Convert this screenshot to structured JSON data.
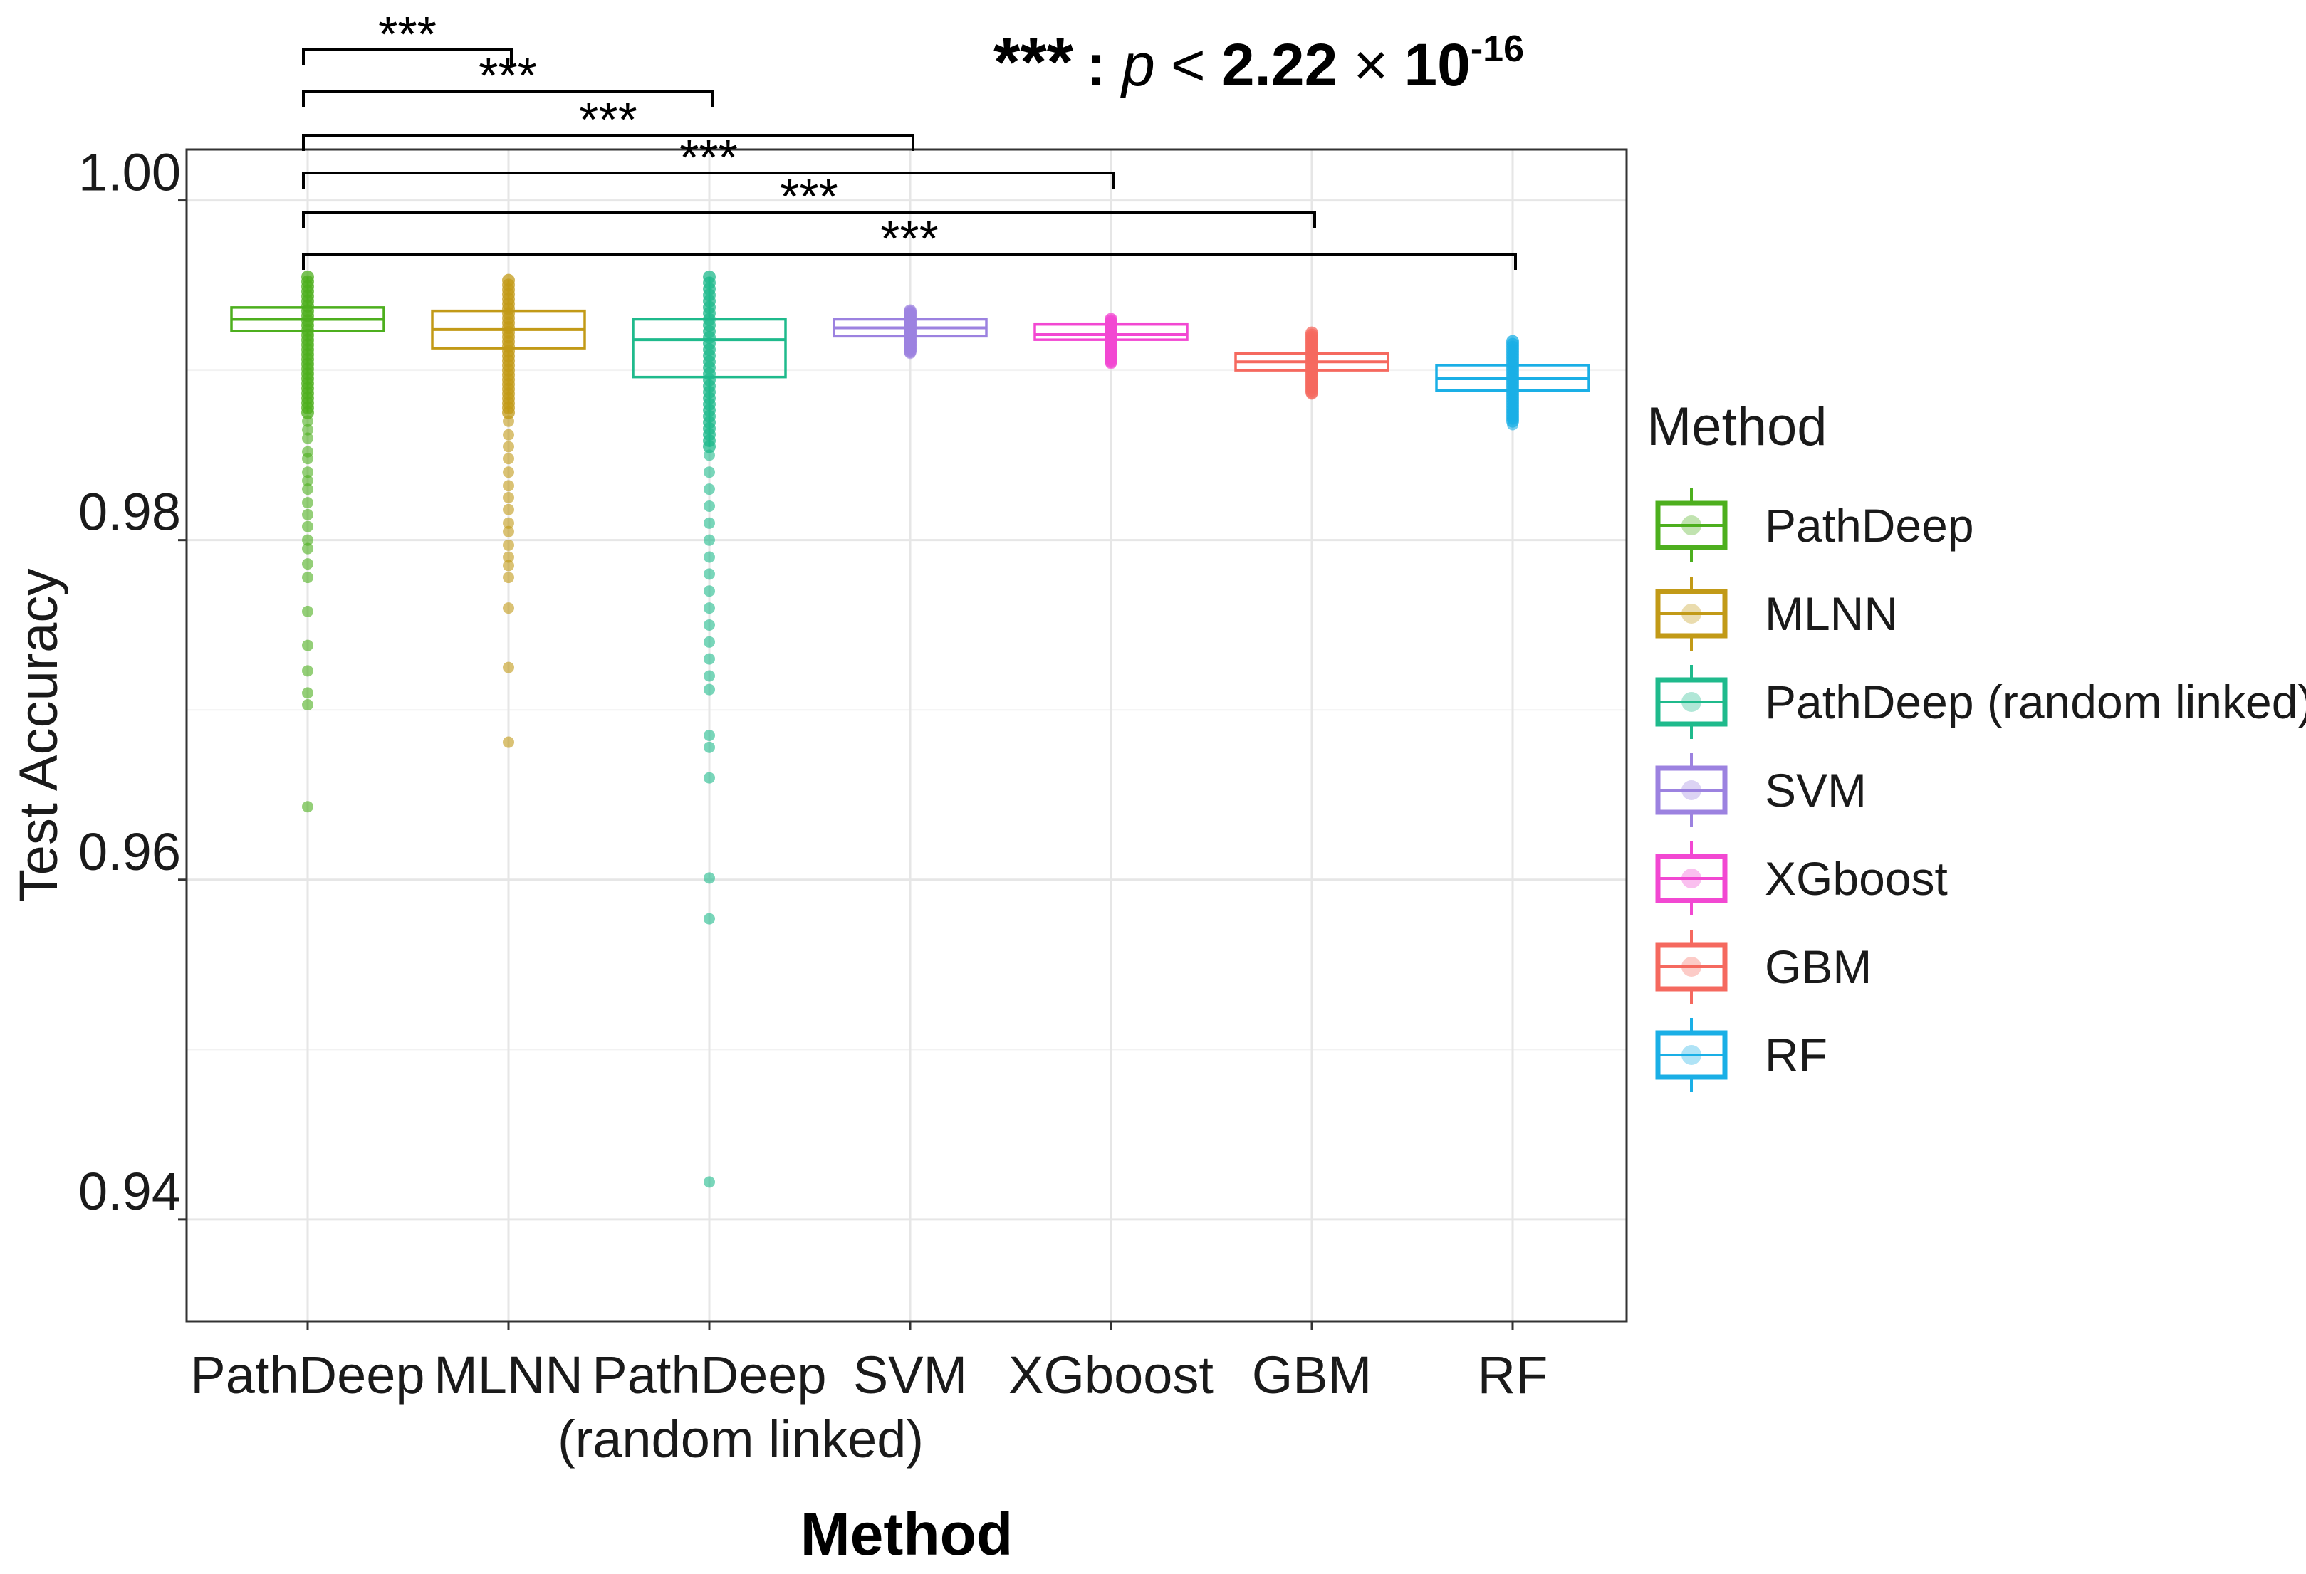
{
  "chart_data": {
    "type": "boxplot",
    "title": "",
    "xlabel": "Method",
    "ylabel": "Test Accuracy",
    "ylim": [
      0.934,
      1.003
    ],
    "yticks": [
      0.94,
      0.96,
      0.98,
      1.0
    ],
    "ytick_labels": [
      "0.94",
      "0.96",
      "0.98",
      "1.00"
    ],
    "grid": true,
    "legend": {
      "title": "Method",
      "position": "right",
      "entries": [
        "PathDeep",
        "MLNN",
        "PathDeep (random linked)",
        "SVM",
        "XGboost",
        "GBM",
        "RF"
      ]
    },
    "significance": {
      "symbol": "***",
      "annotation": {
        "stars": "***",
        "sep": ":",
        "p": "p",
        "lt": "<",
        "value": "2.22",
        "times": "×",
        "base": "10",
        "exponent": "-16"
      },
      "comparisons": [
        {
          "from": "PathDeep",
          "to": "MLNN",
          "label": "***"
        },
        {
          "from": "PathDeep",
          "to": "PathDeep (random linked)",
          "label": "***"
        },
        {
          "from": "PathDeep",
          "to": "SVM",
          "label": "***"
        },
        {
          "from": "PathDeep",
          "to": "XGboost",
          "label": "***"
        },
        {
          "from": "PathDeep",
          "to": "GBM",
          "label": "***"
        },
        {
          "from": "PathDeep",
          "to": "RF",
          "label": "***"
        }
      ]
    },
    "series": [
      {
        "name": "PathDeep",
        "tick_lines": [
          "PathDeep"
        ],
        "color": "#4DAF1E",
        "min": 0.9875,
        "q1": 0.9923,
        "median": 0.993,
        "q3": 0.9937,
        "max": 0.9955,
        "outliers": [
          0.987,
          0.9865,
          0.986,
          0.9852,
          0.9848,
          0.984,
          0.9835,
          0.983,
          0.9822,
          0.9815,
          0.9808,
          0.98,
          0.9795,
          0.9786,
          0.9778,
          0.9758,
          0.9738,
          0.9723,
          0.971,
          0.9703,
          0.9643
        ]
      },
      {
        "name": "MLNN",
        "tick_lines": [
          "MLNN"
        ],
        "color": "#C29A17",
        "min": 0.9875,
        "q1": 0.9913,
        "median": 0.9924,
        "q3": 0.9935,
        "max": 0.9953,
        "outliers": [
          0.987,
          0.9862,
          0.9855,
          0.9848,
          0.984,
          0.9832,
          0.9825,
          0.9818,
          0.981,
          0.9805,
          0.9797,
          0.979,
          0.9785,
          0.9778,
          0.976,
          0.9725,
          0.9681
        ]
      },
      {
        "name": "PathDeep (random linked)",
        "tick_lines": [
          "PathDeep",
          "(random linked)"
        ],
        "color": "#1FBA8C",
        "min": 0.9855,
        "q1": 0.9896,
        "median": 0.9918,
        "q3": 0.993,
        "max": 0.9955,
        "outliers": [
          0.985,
          0.984,
          0.983,
          0.982,
          0.981,
          0.98,
          0.979,
          0.978,
          0.977,
          0.976,
          0.975,
          0.974,
          0.973,
          0.972,
          0.9712,
          0.9685,
          0.9678,
          0.966,
          0.9601,
          0.9577,
          0.9422
        ]
      },
      {
        "name": "SVM",
        "tick_lines": [
          "SVM"
        ],
        "color": "#9C82E0",
        "min": 0.9911,
        "q1": 0.992,
        "median": 0.9925,
        "q3": 0.993,
        "max": 0.9935,
        "outliers": [
          0.991,
          0.9913,
          0.9916
        ]
      },
      {
        "name": "XGboost",
        "tick_lines": [
          "XGboost"
        ],
        "color": "#F248D2",
        "min": 0.9905,
        "q1": 0.9918,
        "median": 0.9921,
        "q3": 0.9927,
        "max": 0.993,
        "outliers": [
          0.9904,
          0.9907,
          0.991
        ]
      },
      {
        "name": "GBM",
        "tick_lines": [
          "GBM"
        ],
        "color": "#F5695F",
        "min": 0.9887,
        "q1": 0.99,
        "median": 0.9905,
        "q3": 0.991,
        "max": 0.9922,
        "outliers": [
          0.9886,
          0.989,
          0.9893
        ]
      },
      {
        "name": "RF",
        "tick_lines": [
          "RF"
        ],
        "color": "#1AAFE6",
        "min": 0.987,
        "q1": 0.9888,
        "median": 0.9895,
        "q3": 0.9903,
        "max": 0.9917,
        "outliers": [
          0.9868,
          0.9872,
          0.9876
        ]
      }
    ]
  }
}
